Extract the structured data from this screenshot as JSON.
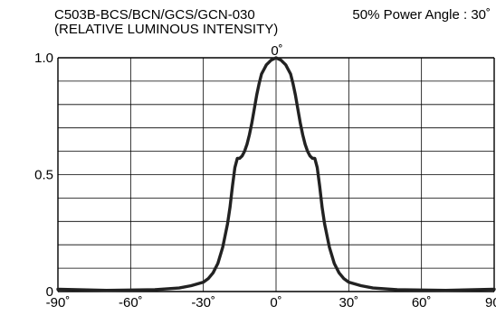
{
  "chart_data": {
    "type": "line",
    "title_line1": "C503B-BCS/BCN/GCS/GCN-030",
    "title_right": "50% Power Angle : 30˚",
    "title_line2": "(RELATIVE LUMINOUS INTENSITY)",
    "xlabel": "",
    "ylabel": "",
    "top_label": "0˚",
    "x_ticks": [
      "-90˚",
      "-60˚",
      "-30˚",
      "0˚",
      "30˚",
      "60˚",
      "90˚"
    ],
    "y_ticks": [
      "1.0",
      "0.5",
      "0"
    ],
    "xlim": [
      -90,
      90
    ],
    "ylim": [
      0,
      1.0
    ],
    "grid": true,
    "series": [
      {
        "x": [
          -90,
          -70,
          -50,
          -40,
          -35,
          -30,
          -28,
          -26,
          -24,
          -22,
          -20,
          -19,
          -18,
          -17,
          -16,
          -15,
          -14,
          -13,
          -12,
          -11,
          -10,
          -9,
          -8,
          -7,
          -6,
          -5,
          -4,
          -3,
          -2,
          -1,
          0,
          1,
          2,
          3,
          4,
          5,
          6,
          7,
          8,
          9,
          10,
          11,
          12,
          13,
          14,
          15,
          16,
          17,
          18,
          19,
          20,
          22,
          24,
          26,
          28,
          30,
          35,
          40,
          50,
          70,
          90
        ],
        "y": [
          0.01,
          0.005,
          0.008,
          0.015,
          0.025,
          0.04,
          0.055,
          0.08,
          0.12,
          0.19,
          0.29,
          0.36,
          0.45,
          0.53,
          0.57,
          0.57,
          0.58,
          0.6,
          0.63,
          0.67,
          0.72,
          0.78,
          0.84,
          0.89,
          0.93,
          0.95,
          0.97,
          0.98,
          0.99,
          0.995,
          1.0,
          0.995,
          0.99,
          0.98,
          0.97,
          0.95,
          0.93,
          0.89,
          0.84,
          0.78,
          0.72,
          0.67,
          0.63,
          0.6,
          0.58,
          0.57,
          0.57,
          0.53,
          0.45,
          0.36,
          0.29,
          0.19,
          0.12,
          0.08,
          0.055,
          0.04,
          0.025,
          0.015,
          0.008,
          0.005,
          0.01
        ]
      }
    ]
  }
}
